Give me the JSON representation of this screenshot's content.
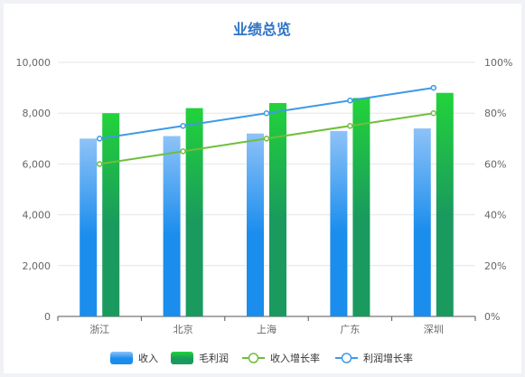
{
  "chart_data": {
    "type": "bar",
    "title": "业绩总览",
    "categories": [
      "浙江",
      "北京",
      "上海",
      "广东",
      "深圳"
    ],
    "series": [
      {
        "name": "收入",
        "type": "bar",
        "axis": "left",
        "values": [
          7000,
          7100,
          7200,
          7300,
          7400
        ],
        "color_top": "#8ec2f8",
        "color_bottom": "#1a8ded"
      },
      {
        "name": "毛利润",
        "type": "bar",
        "axis": "left",
        "values": [
          8000,
          8200,
          8400,
          8600,
          8800
        ],
        "color_top": "#22d33a",
        "color_bottom": "#1a9a5e"
      },
      {
        "name": "收入增长率",
        "type": "line",
        "axis": "right",
        "values": [
          60,
          65,
          70,
          75,
          80
        ],
        "color": "#6fbf3b"
      },
      {
        "name": "利润增长率",
        "type": "line",
        "axis": "right",
        "values": [
          70,
          75,
          80,
          85,
          90
        ],
        "color": "#3d9ae8"
      }
    ],
    "y_left": {
      "min": 0,
      "max": 10000,
      "ticks": [
        "0",
        "2,000",
        "4,000",
        "6,000",
        "8,000",
        "10,000"
      ]
    },
    "y_right": {
      "min": 0,
      "max": 100,
      "ticks": [
        "0%",
        "20%",
        "40%",
        "60%",
        "80%",
        "100%"
      ]
    },
    "grid": true,
    "legend_position": "bottom"
  }
}
